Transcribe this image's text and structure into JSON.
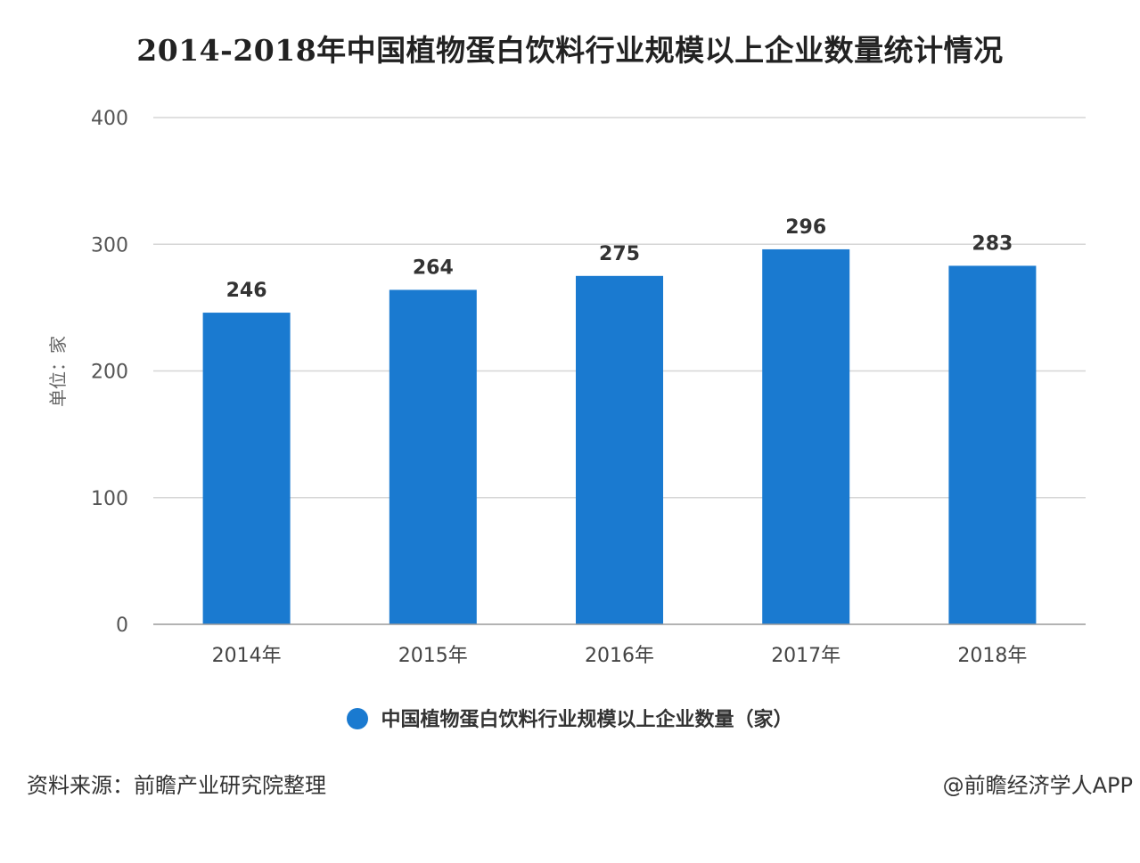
{
  "chart_data": {
    "type": "bar",
    "title": "2014-2018年中国植物蛋白饮料行业规模以上企业数量统计情况",
    "categories": [
      "2014年",
      "2015年",
      "2016年",
      "2017年",
      "2018年"
    ],
    "series": [
      {
        "name": "中国植物蛋白饮料行业规模以上企业数量（家）",
        "values": [
          246,
          264,
          275,
          296,
          283
        ],
        "color": "#1a7ad0"
      }
    ],
    "ylabel": "单位：家",
    "xlabel": "",
    "ylim": [
      0,
      400
    ],
    "yticks": [
      0,
      100,
      200,
      300,
      400
    ],
    "grid": true,
    "legend_position": "bottom-center",
    "data_labels": true
  },
  "footer": {
    "source": "资料来源：前瞻产业研究院整理",
    "credit": "@前瞻经济学人APP"
  }
}
